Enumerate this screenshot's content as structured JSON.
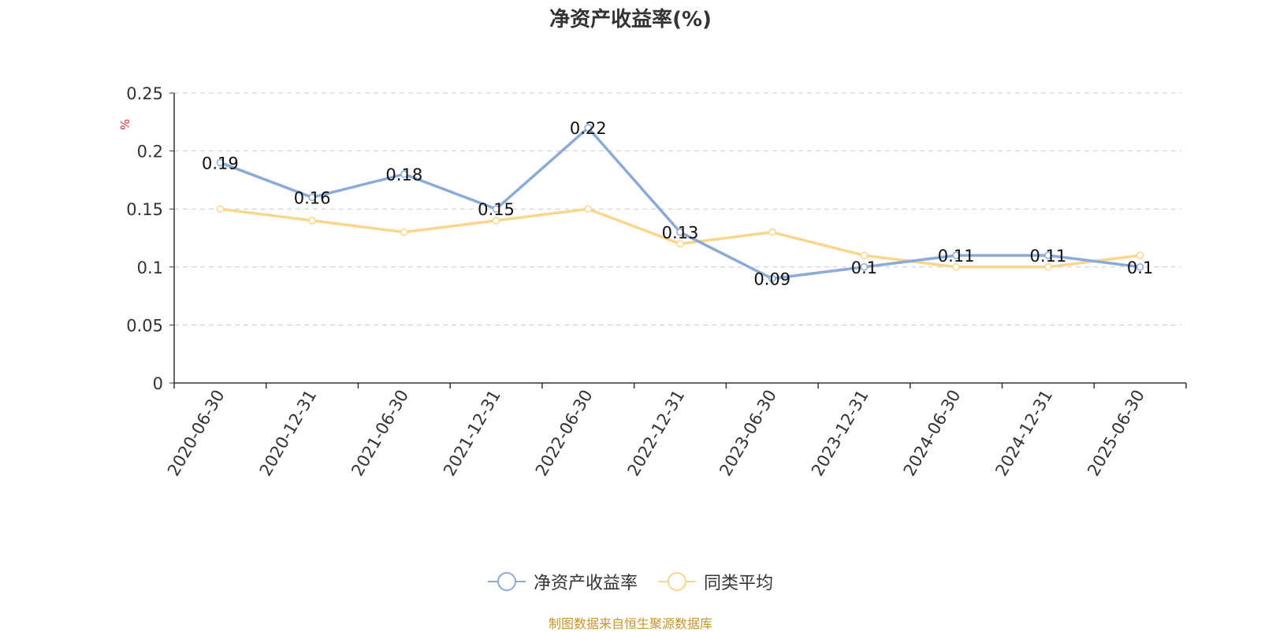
{
  "title": "净资产收益率(%)",
  "source_text": "制图数据来自恒生聚源数据库",
  "colors": {
    "series1": "#8caad6",
    "series2": "#fad58c",
    "unit": "#e0302a",
    "axis": "#333333",
    "grid": "#cccccc",
    "source": "#c8952a"
  },
  "legend_icon": "circle-line-icon",
  "chart_data": {
    "type": "line",
    "title": "净资产收益率(%)",
    "ylabel": "%",
    "xlabel": "",
    "ylim": [
      0,
      0.25
    ],
    "yticks": [
      0,
      0.05,
      0.1,
      0.15,
      0.2,
      0.25
    ],
    "ytick_labels": [
      "0",
      "0.05",
      "0.1",
      "0.15",
      "0.2",
      "0.25"
    ],
    "grid": true,
    "legend_position": "bottom",
    "categories": [
      "2020-06-30",
      "2020-12-31",
      "2021-06-30",
      "2021-12-31",
      "2022-06-30",
      "2022-12-31",
      "2023-06-30",
      "2023-12-31",
      "2024-06-30",
      "2024-12-31",
      "2025-06-30"
    ],
    "series": [
      {
        "name": "净资产收益率",
        "color": "#8caad6",
        "show_labels": true,
        "values": [
          0.19,
          0.16,
          0.18,
          0.15,
          0.22,
          0.13,
          0.09,
          0.1,
          0.11,
          0.11,
          0.1
        ],
        "labels": [
          "0.19",
          "0.16",
          "0.18",
          "0.15",
          "0.22",
          "0.13",
          "0.09",
          "0.1",
          "0.11",
          "0.11",
          "0.1"
        ]
      },
      {
        "name": "同类平均",
        "color": "#fad58c",
        "show_labels": false,
        "values": [
          0.15,
          0.14,
          0.13,
          0.14,
          0.15,
          0.12,
          0.13,
          0.11,
          0.1,
          0.1,
          0.11
        ]
      }
    ]
  }
}
